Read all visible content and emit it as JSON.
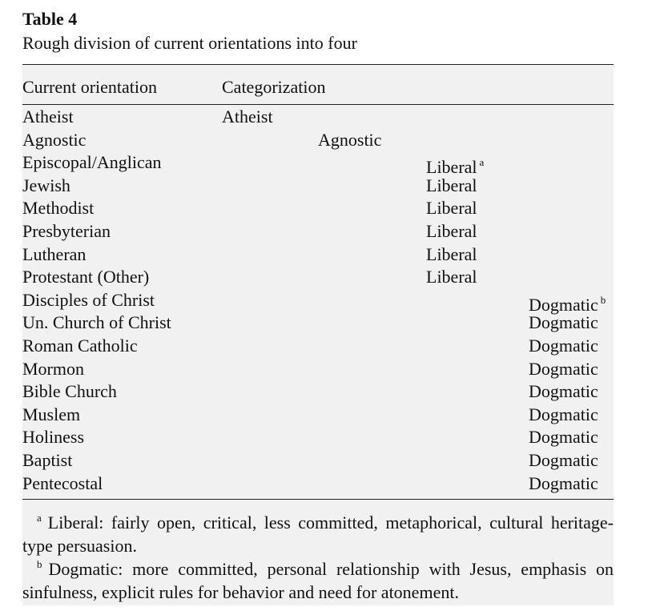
{
  "header": {
    "title": "Table 4",
    "caption": "Rough division of current orientations into four"
  },
  "table": {
    "columns": [
      "Current orientation",
      "Categorization"
    ],
    "rows": [
      {
        "orientation": "Atheist",
        "category": "Atheist"
      },
      {
        "orientation": "Agnostic",
        "category": "Agnostic"
      },
      {
        "orientation": "Episcopal/Anglican",
        "category": "Liberal",
        "note": "a"
      },
      {
        "orientation": "Jewish",
        "category": "Liberal"
      },
      {
        "orientation": "Methodist",
        "category": "Liberal"
      },
      {
        "orientation": "Presbyterian",
        "category": "Liberal"
      },
      {
        "orientation": "Lutheran",
        "category": "Liberal"
      },
      {
        "orientation": "Protestant (Other)",
        "category": "Liberal"
      },
      {
        "orientation": "Disciples of Christ",
        "category": "Dogmatic",
        "note": "b"
      },
      {
        "orientation": "Un. Church of Christ",
        "category": "Dogmatic"
      },
      {
        "orientation": "Roman Catholic",
        "category": "Dogmatic"
      },
      {
        "orientation": "Mormon",
        "category": "Dogmatic"
      },
      {
        "orientation": "Bible Church",
        "category": "Dogmatic"
      },
      {
        "orientation": "Muslem",
        "category": "Dogmatic"
      },
      {
        "orientation": "Holiness",
        "category": "Dogmatic"
      },
      {
        "orientation": "Baptist",
        "category": "Dogmatic"
      },
      {
        "orientation": "Pentecostal",
        "category": "Dogmatic"
      }
    ]
  },
  "footnotes": [
    {
      "mark": "a",
      "text": "Liberal: fairly open, critical, less committed, metaphorical, cultural heritage-type persuasion."
    },
    {
      "mark": "b",
      "text": "Dogmatic: more committed, personal relationship with Jesus, emphasis on sinfulness, explicit rules for behavior and need for atonement."
    }
  ]
}
